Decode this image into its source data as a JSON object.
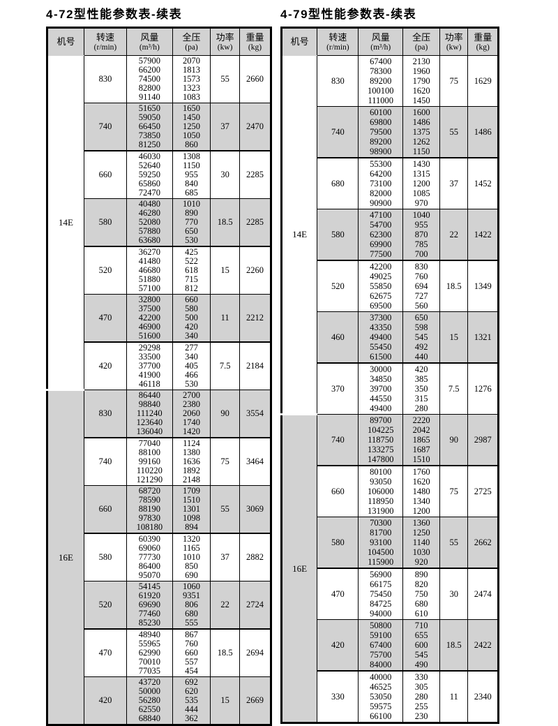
{
  "colors": {
    "shaded_row": "#d2d2d2",
    "border": "#000000",
    "text": "#000000",
    "background": "#ffffff"
  },
  "tables": [
    {
      "title": "4-72型性能参数表-续表",
      "headers": [
        {
          "label": "机号",
          "unit": ""
        },
        {
          "label": "转速",
          "unit": "(r/min)"
        },
        {
          "label": "风量",
          "unit": "(m³/h)"
        },
        {
          "label": "全压",
          "unit": "(pa)"
        },
        {
          "label": "功率",
          "unit": "(kw)"
        },
        {
          "label": "重量",
          "unit": "(kg)"
        }
      ],
      "sections": [
        {
          "machine_no": "14E",
          "rows": [
            {
              "speed": "830",
              "flows": [
                "57900",
                "66200",
                "74500",
                "82800",
                "91140"
              ],
              "pressures": [
                "2070",
                "1813",
                "1573",
                "1323",
                "1083"
              ],
              "power": "55",
              "weight": "2660",
              "shaded": false
            },
            {
              "speed": "740",
              "flows": [
                "51650",
                "59050",
                "66450",
                "73850",
                "81250"
              ],
              "pressures": [
                "1650",
                "1450",
                "1250",
                "1050",
                "860"
              ],
              "power": "37",
              "weight": "2470",
              "shaded": true
            },
            {
              "speed": "660",
              "flows": [
                "46030",
                "52640",
                "59250",
                "65860",
                "72470"
              ],
              "pressures": [
                "1308",
                "1150",
                "955",
                "840",
                "685"
              ],
              "power": "30",
              "weight": "2285",
              "shaded": false
            },
            {
              "speed": "580",
              "flows": [
                "40480",
                "46280",
                "52080",
                "57880",
                "63680"
              ],
              "pressures": [
                "1010",
                "890",
                "770",
                "650",
                "530"
              ],
              "power": "18.5",
              "weight": "2285",
              "shaded": true
            },
            {
              "speed": "520",
              "flows": [
                "36270",
                "41480",
                "46680",
                "51880",
                "57100"
              ],
              "pressures": [
                "425",
                "522",
                "618",
                "715",
                "812"
              ],
              "power": "15",
              "weight": "2260",
              "shaded": false
            },
            {
              "speed": "470",
              "flows": [
                "32800",
                "37500",
                "42200",
                "46900",
                "51600"
              ],
              "pressures": [
                "660",
                "580",
                "500",
                "420",
                "340"
              ],
              "power": "11",
              "weight": "2212",
              "shaded": true
            },
            {
              "speed": "420",
              "flows": [
                "29298",
                "33500",
                "37700",
                "41900",
                "46118"
              ],
              "pressures": [
                "277",
                "340",
                "405",
                "466",
                "530"
              ],
              "power": "7.5",
              "weight": "2184",
              "shaded": false
            }
          ]
        },
        {
          "machine_no": "16E",
          "rows": [
            {
              "speed": "830",
              "flows": [
                "86440",
                "98840",
                "111240",
                "123640",
                "136040"
              ],
              "pressures": [
                "2700",
                "2380",
                "2060",
                "1740",
                "1420"
              ],
              "power": "90",
              "weight": "3554",
              "shaded": true
            },
            {
              "speed": "740",
              "flows": [
                "77040",
                "88100",
                "99160",
                "110220",
                "121290"
              ],
              "pressures": [
                "1124",
                "1380",
                "1636",
                "1892",
                "2148"
              ],
              "power": "75",
              "weight": "3464",
              "shaded": false
            },
            {
              "speed": "660",
              "flows": [
                "68720",
                "78590",
                "88190",
                "97830",
                "108180"
              ],
              "pressures": [
                "1709",
                "1510",
                "1301",
                "1098",
                "894"
              ],
              "power": "55",
              "weight": "3069",
              "shaded": true
            },
            {
              "speed": "580",
              "flows": [
                "60390",
                "69060",
                "77730",
                "86400",
                "95070"
              ],
              "pressures": [
                "1320",
                "1165",
                "1010",
                "850",
                "690"
              ],
              "power": "37",
              "weight": "2882",
              "shaded": false
            },
            {
              "speed": "520",
              "flows": [
                "54145",
                "61920",
                "69690",
                "77460",
                "85230"
              ],
              "pressures": [
                "1060",
                "9351",
                "806",
                "680",
                "555"
              ],
              "power": "22",
              "weight": "2724",
              "shaded": true
            },
            {
              "speed": "470",
              "flows": [
                "48940",
                "55965",
                "62990",
                "70010",
                "77035"
              ],
              "pressures": [
                "867",
                "760",
                "660",
                "557",
                "454"
              ],
              "power": "18.5",
              "weight": "2694",
              "shaded": false
            },
            {
              "speed": "420",
              "flows": [
                "43720",
                "50000",
                "56280",
                "62550",
                "68840"
              ],
              "pressures": [
                "692",
                "620",
                "535",
                "444",
                "362"
              ],
              "power": "15",
              "weight": "2669",
              "shaded": true
            }
          ]
        }
      ]
    },
    {
      "title": "4-79型性能参数表-续表",
      "headers": [
        {
          "label": "机号",
          "unit": ""
        },
        {
          "label": "转速",
          "unit": "(r/min)"
        },
        {
          "label": "风量",
          "unit": "(m³/h)"
        },
        {
          "label": "全压",
          "unit": "(pa)"
        },
        {
          "label": "功率",
          "unit": "(kw)"
        },
        {
          "label": "重量",
          "unit": "(kg)"
        }
      ],
      "sections": [
        {
          "machine_no": "14E",
          "rows": [
            {
              "speed": "830",
              "flows": [
                "67400",
                "78300",
                "89200",
                "100100",
                "111000"
              ],
              "pressures": [
                "2130",
                "1960",
                "1790",
                "1620",
                "1450"
              ],
              "power": "75",
              "weight": "1629",
              "shaded": false
            },
            {
              "speed": "740",
              "flows": [
                "60100",
                "69800",
                "79500",
                "89200",
                "98900"
              ],
              "pressures": [
                "1600",
                "1486",
                "1375",
                "1262",
                "1150"
              ],
              "power": "55",
              "weight": "1486",
              "shaded": true
            },
            {
              "speed": "680",
              "flows": [
                "55300",
                "64200",
                "73100",
                "82000",
                "90900"
              ],
              "pressures": [
                "1430",
                "1315",
                "1200",
                "1085",
                "970"
              ],
              "power": "37",
              "weight": "1452",
              "shaded": false
            },
            {
              "speed": "580",
              "flows": [
                "47100",
                "54700",
                "62300",
                "69900",
                "77500"
              ],
              "pressures": [
                "1040",
                "955",
                "870",
                "785",
                "700"
              ],
              "power": "22",
              "weight": "1422",
              "shaded": true
            },
            {
              "speed": "520",
              "flows": [
                "42200",
                "49025",
                "55850",
                "62675",
                "69500"
              ],
              "pressures": [
                "830",
                "760",
                "694",
                "727",
                "560"
              ],
              "power": "18.5",
              "weight": "1349",
              "shaded": false
            },
            {
              "speed": "460",
              "flows": [
                "37300",
                "43350",
                "49400",
                "55450",
                "61500"
              ],
              "pressures": [
                "650",
                "598",
                "545",
                "492",
                "440"
              ],
              "power": "15",
              "weight": "1321",
              "shaded": true
            },
            {
              "speed": "370",
              "flows": [
                "30000",
                "34850",
                "39700",
                "44550",
                "49400"
              ],
              "pressures": [
                "420",
                "385",
                "350",
                "315",
                "280"
              ],
              "power": "7.5",
              "weight": "1276",
              "shaded": false
            }
          ]
        },
        {
          "machine_no": "16E",
          "rows": [
            {
              "speed": "740",
              "flows": [
                "89700",
                "104225",
                "118750",
                "133275",
                "147800"
              ],
              "pressures": [
                "2220",
                "2042",
                "1865",
                "1687",
                "1510"
              ],
              "power": "90",
              "weight": "2987",
              "shaded": true
            },
            {
              "speed": "660",
              "flows": [
                "80100",
                "93050",
                "106000",
                "118950",
                "131900"
              ],
              "pressures": [
                "1760",
                "1620",
                "1480",
                "1340",
                "1200"
              ],
              "power": "75",
              "weight": "2725",
              "shaded": false
            },
            {
              "speed": "580",
              "flows": [
                "70300",
                "81700",
                "93100",
                "104500",
                "115900"
              ],
              "pressures": [
                "1360",
                "1250",
                "1140",
                "1030",
                "920"
              ],
              "power": "55",
              "weight": "2662",
              "shaded": true
            },
            {
              "speed": "470",
              "flows": [
                "56900",
                "66175",
                "75450",
                "84725",
                "94000"
              ],
              "pressures": [
                "890",
                "820",
                "750",
                "680",
                "610"
              ],
              "power": "30",
              "weight": "2474",
              "shaded": false
            },
            {
              "speed": "420",
              "flows": [
                "50800",
                "59100",
                "67400",
                "75700",
                "84000"
              ],
              "pressures": [
                "710",
                "655",
                "600",
                "545",
                "490"
              ],
              "power": "18.5",
              "weight": "2422",
              "shaded": true
            },
            {
              "speed": "330",
              "flows": [
                "40000",
                "46525",
                "53050",
                "59575",
                "66100"
              ],
              "pressures": [
                "330",
                "305",
                "280",
                "255",
                "230"
              ],
              "power": "11",
              "weight": "2340",
              "shaded": false
            }
          ]
        }
      ]
    }
  ]
}
